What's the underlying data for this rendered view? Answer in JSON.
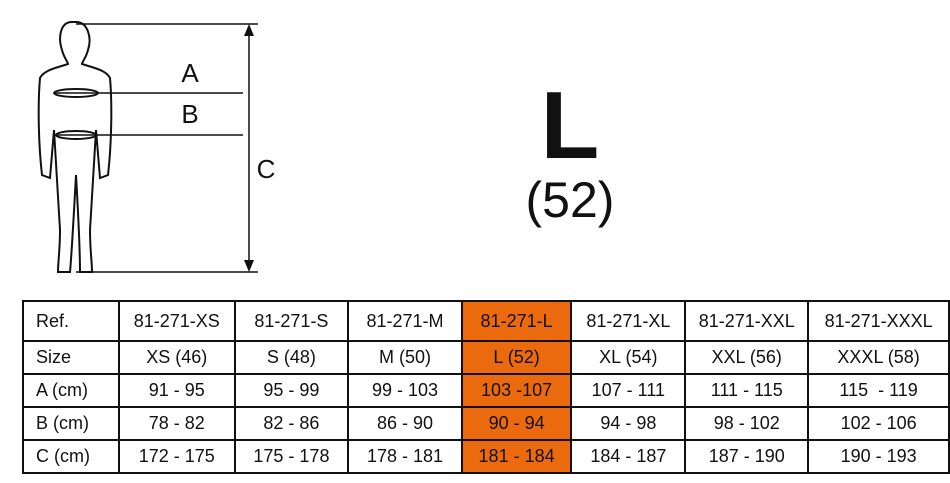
{
  "figure": {
    "labels": [
      "A",
      "B",
      "C"
    ]
  },
  "size": {
    "letter": "L",
    "number": "(52)"
  },
  "table": {
    "rows": [
      [
        "Ref.",
        "81-271-XS",
        "81-271-S",
        "81-271-M",
        "81-271-L",
        "81-271-XL",
        "81-271-XXL",
        "81-271-XXXL"
      ],
      [
        "Size",
        "XS (46)",
        "S (48)",
        "M (50)",
        "L (52)",
        "XL (54)",
        "XXL (56)",
        "XXXL (58)"
      ],
      [
        "A (cm)",
        "91 - 95",
        "95 - 99",
        "99 - 103",
        "103 -107",
        "107 - 111",
        "111 - 115",
        "115  - 119"
      ],
      [
        "B (cm)",
        "78 - 82",
        "82 - 86",
        "86 - 90",
        "90 - 94",
        "94 - 98",
        "98 - 102",
        "102 - 106"
      ],
      [
        "C (cm)",
        "172 - 175",
        "175 - 178",
        "178 - 181",
        "181 - 184",
        "184 - 187",
        "187 - 190",
        "190 - 193"
      ]
    ]
  }
}
